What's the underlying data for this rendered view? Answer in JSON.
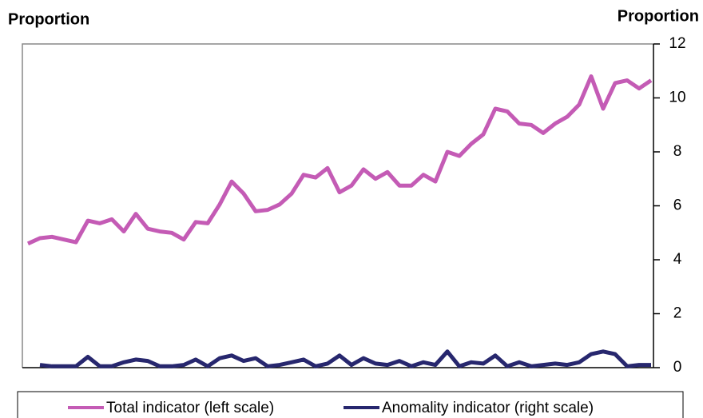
{
  "chart_data": {
    "type": "line",
    "y_title": "Proportion",
    "y2_title": "Proportion",
    "ylim": [
      0,
      12
    ],
    "yticks": [
      0,
      2,
      4,
      6,
      8,
      10,
      12
    ],
    "series": [
      {
        "name": "Total indicator (left scale)",
        "color": "#c45bb5",
        "values": [
          4.6,
          4.8,
          4.85,
          4.75,
          4.65,
          5.45,
          5.35,
          5.5,
          5.05,
          5.7,
          5.15,
          5.05,
          5.0,
          4.75,
          5.4,
          5.35,
          6.05,
          6.9,
          6.45,
          5.8,
          5.85,
          6.05,
          6.45,
          7.15,
          7.05,
          7.4,
          6.5,
          6.75,
          7.35,
          7.0,
          7.25,
          6.75,
          6.75,
          7.15,
          6.9,
          8.0,
          7.85,
          8.3,
          8.65,
          9.6,
          9.5,
          9.05,
          9.0,
          8.7,
          9.05,
          9.3,
          9.75,
          10.8,
          9.6,
          10.55,
          10.65,
          10.35,
          10.65
        ]
      },
      {
        "name": "Anomality indicator (right scale)",
        "color": "#27276e",
        "values": [
          null,
          0.1,
          0.05,
          0.05,
          0.05,
          0.4,
          0.05,
          0.05,
          0.2,
          0.3,
          0.25,
          0.05,
          0.05,
          0.1,
          0.3,
          0.05,
          0.35,
          0.45,
          0.25,
          0.35,
          0.05,
          0.1,
          0.2,
          0.3,
          0.05,
          0.15,
          0.45,
          0.1,
          0.35,
          0.15,
          0.1,
          0.25,
          0.05,
          0.2,
          0.1,
          0.6,
          0.05,
          0.2,
          0.15,
          0.45,
          0.05,
          0.2,
          0.05,
          0.1,
          0.15,
          0.1,
          0.2,
          0.5,
          0.6,
          0.5,
          0.05,
          0.1,
          0.1
        ]
      }
    ]
  }
}
